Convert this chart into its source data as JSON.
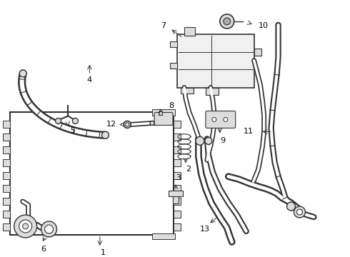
{
  "background_color": "#ffffff",
  "line_color": "#333333",
  "figsize": [
    4.9,
    3.6
  ],
  "dpi": 100,
  "component_color": "#888888",
  "fill_color": "#dddddd",
  "dark_color": "#444444"
}
